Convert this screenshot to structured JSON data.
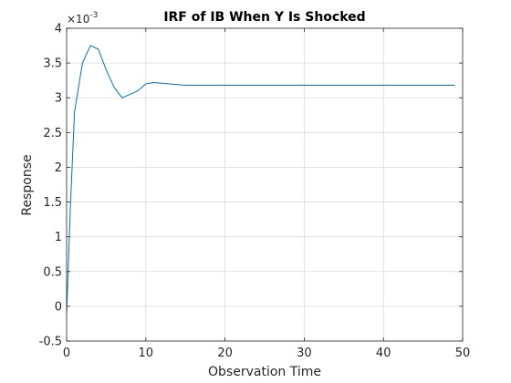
{
  "chart_data": {
    "type": "line",
    "title": "IRF of IB When Y Is Shocked",
    "xlabel": "Observation Time",
    "ylabel": "Response",
    "y_multiplier_label": "×10",
    "y_multiplier_exponent": "-3",
    "xlim": [
      0,
      50
    ],
    "ylim": [
      -0.5,
      4
    ],
    "x_ticks": [
      0,
      10,
      20,
      30,
      40,
      50
    ],
    "y_ticks": [
      -0.5,
      0,
      0.5,
      1,
      1.5,
      2,
      2.5,
      3,
      3.5,
      4
    ],
    "x_tick_labels": [
      "0",
      "10",
      "20",
      "30",
      "40",
      "50"
    ],
    "y_tick_labels": [
      "-0.5",
      "0",
      "0.5",
      "1",
      "1.5",
      "2",
      "2.5",
      "3",
      "3.5",
      "4"
    ],
    "grid": true,
    "line_color": "#0072BD",
    "series": [
      {
        "x": [
          0,
          0.5,
          1,
          2,
          3,
          4,
          5,
          6,
          7,
          8,
          9,
          10,
          11,
          12,
          13,
          14,
          15,
          16,
          17,
          18,
          19,
          20,
          21,
          22,
          23,
          24,
          25,
          26,
          27,
          28,
          29,
          30,
          31,
          32,
          33,
          34,
          35,
          36,
          37,
          38,
          39,
          40,
          41,
          42,
          43,
          44,
          45,
          46,
          47,
          48,
          49
        ],
        "values": [
          -0.1,
          1.5,
          2.8,
          3.5,
          3.75,
          3.7,
          3.4,
          3.15,
          3.0,
          3.05,
          3.1,
          3.2,
          3.22,
          3.21,
          3.2,
          3.19,
          3.18,
          3.18,
          3.18,
          3.18,
          3.18,
          3.18,
          3.18,
          3.18,
          3.18,
          3.18,
          3.18,
          3.18,
          3.18,
          3.18,
          3.18,
          3.18,
          3.18,
          3.18,
          3.18,
          3.18,
          3.18,
          3.18,
          3.18,
          3.18,
          3.18,
          3.18,
          3.18,
          3.18,
          3.18,
          3.18,
          3.18,
          3.18,
          3.18,
          3.18,
          3.18
        ]
      }
    ]
  }
}
